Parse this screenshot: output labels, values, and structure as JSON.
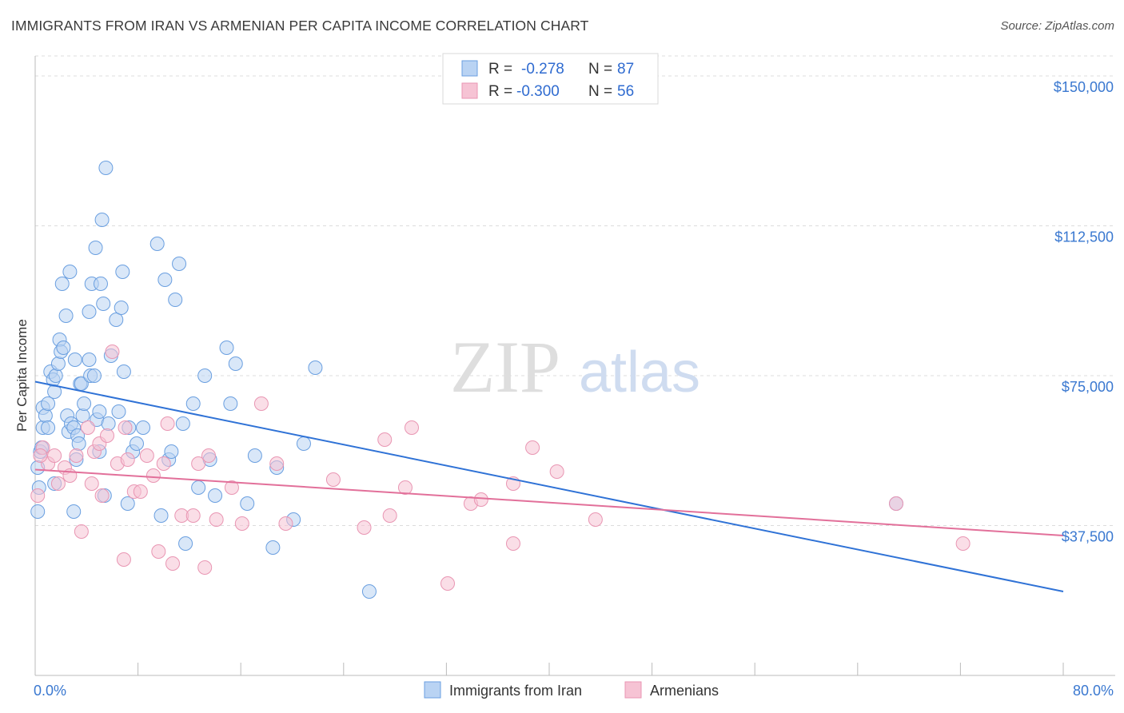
{
  "title": "IMMIGRANTS FROM IRAN VS ARMENIAN PER CAPITA INCOME CORRELATION CHART",
  "source": "Source: ZipAtlas.com",
  "watermark": {
    "zip": "ZIP",
    "atlas": "atlas"
  },
  "chart_data": {
    "type": "scatter",
    "ylabel": "Per Capita Income",
    "xlim": [
      0,
      80
    ],
    "ylim": [
      0,
      155000
    ],
    "x_tick_labels": [
      "0.0%",
      "80.0%"
    ],
    "y_ticks": [
      37500,
      75000,
      112500,
      150000
    ],
    "y_tick_labels": [
      "$37,500",
      "$75,000",
      "$112,500",
      "$150,000"
    ],
    "grid": true,
    "legend_position": "top-center",
    "stats": [
      {
        "r_label": "R =",
        "r_value": "-0.278",
        "n_label": "N =",
        "n_value": "87"
      },
      {
        "r_label": "R =",
        "r_value": "-0.300",
        "n_label": "N =",
        "n_value": "56"
      }
    ],
    "series": [
      {
        "name": "Immigrants from Iran",
        "color": "#6a9fe0",
        "fill": "#b9d3f3",
        "trend_color": "#2f72d6",
        "trend": {
          "x0": 0,
          "y0": 73500,
          "x1": 80,
          "y1": 21000
        },
        "points": [
          [
            0.2,
            41000
          ],
          [
            0.2,
            52000
          ],
          [
            0.4,
            56000
          ],
          [
            0.6,
            62000
          ],
          [
            0.6,
            67000
          ],
          [
            0.8,
            65000
          ],
          [
            1.0,
            68000
          ],
          [
            1.0,
            62000
          ],
          [
            1.2,
            76000
          ],
          [
            1.4,
            74000
          ],
          [
            1.5,
            71000
          ],
          [
            1.5,
            48000
          ],
          [
            1.6,
            75000
          ],
          [
            1.8,
            78000
          ],
          [
            1.9,
            84000
          ],
          [
            2.0,
            81000
          ],
          [
            2.1,
            98000
          ],
          [
            2.2,
            82000
          ],
          [
            2.4,
            90000
          ],
          [
            2.5,
            65000
          ],
          [
            2.6,
            61000
          ],
          [
            2.7,
            101000
          ],
          [
            2.8,
            63000
          ],
          [
            3.0,
            62000
          ],
          [
            3.0,
            41000
          ],
          [
            3.1,
            79000
          ],
          [
            3.2,
            54000
          ],
          [
            3.3,
            60000
          ],
          [
            3.4,
            58000
          ],
          [
            3.5,
            73000
          ],
          [
            3.6,
            73000
          ],
          [
            3.7,
            65000
          ],
          [
            3.8,
            68000
          ],
          [
            4.2,
            91000
          ],
          [
            4.2,
            79000
          ],
          [
            4.3,
            75000
          ],
          [
            4.4,
            98000
          ],
          [
            4.6,
            75000
          ],
          [
            4.7,
            107000
          ],
          [
            4.8,
            64000
          ],
          [
            5.0,
            66000
          ],
          [
            5.0,
            56000
          ],
          [
            5.1,
            98000
          ],
          [
            5.2,
            114000
          ],
          [
            5.3,
            93000
          ],
          [
            5.4,
            45000
          ],
          [
            5.5,
            127000
          ],
          [
            5.7,
            63000
          ],
          [
            5.9,
            80000
          ],
          [
            6.3,
            89000
          ],
          [
            6.5,
            66000
          ],
          [
            6.7,
            92000
          ],
          [
            6.8,
            101000
          ],
          [
            6.9,
            76000
          ],
          [
            7.2,
            43000
          ],
          [
            7.3,
            62000
          ],
          [
            7.6,
            56000
          ],
          [
            7.9,
            58000
          ],
          [
            8.4,
            62000
          ],
          [
            9.5,
            108000
          ],
          [
            9.8,
            40000
          ],
          [
            10.1,
            99000
          ],
          [
            10.4,
            54000
          ],
          [
            10.6,
            56000
          ],
          [
            10.9,
            94000
          ],
          [
            11.2,
            103000
          ],
          [
            11.5,
            63000
          ],
          [
            11.7,
            33000
          ],
          [
            12.3,
            68000
          ],
          [
            12.7,
            47000
          ],
          [
            13.2,
            75000
          ],
          [
            13.6,
            54000
          ],
          [
            14.0,
            45000
          ],
          [
            14.9,
            82000
          ],
          [
            15.2,
            68000
          ],
          [
            15.6,
            78000
          ],
          [
            16.5,
            43000
          ],
          [
            17.1,
            55000
          ],
          [
            18.5,
            32000
          ],
          [
            18.8,
            52000
          ],
          [
            20.1,
            39000
          ],
          [
            20.9,
            58000
          ],
          [
            21.8,
            77000
          ],
          [
            26.0,
            21000
          ],
          [
            67.0,
            43000
          ],
          [
            0.3,
            47000
          ],
          [
            0.5,
            57000
          ]
        ]
      },
      {
        "name": "Armenians",
        "color": "#e996b3",
        "fill": "#f6c3d4",
        "trend_color": "#e2709a",
        "trend": {
          "x0": 0,
          "y0": 51500,
          "x1": 80,
          "y1": 35000
        },
        "points": [
          [
            0.2,
            45000
          ],
          [
            0.6,
            57000
          ],
          [
            1.0,
            53000
          ],
          [
            1.5,
            55000
          ],
          [
            1.8,
            48000
          ],
          [
            2.3,
            52000
          ],
          [
            2.7,
            50000
          ],
          [
            3.2,
            55000
          ],
          [
            3.6,
            36000
          ],
          [
            4.1,
            62000
          ],
          [
            4.4,
            48000
          ],
          [
            4.6,
            56000
          ],
          [
            5.0,
            58000
          ],
          [
            5.2,
            45000
          ],
          [
            5.6,
            60000
          ],
          [
            6.0,
            81000
          ],
          [
            6.4,
            53000
          ],
          [
            6.9,
            29000
          ],
          [
            7.0,
            62000
          ],
          [
            7.2,
            54000
          ],
          [
            7.7,
            46000
          ],
          [
            8.2,
            46000
          ],
          [
            8.7,
            55000
          ],
          [
            9.2,
            50000
          ],
          [
            9.6,
            31000
          ],
          [
            10.0,
            53000
          ],
          [
            10.3,
            63000
          ],
          [
            10.7,
            28000
          ],
          [
            11.4,
            40000
          ],
          [
            12.3,
            40000
          ],
          [
            12.7,
            53000
          ],
          [
            13.2,
            27000
          ],
          [
            13.5,
            55000
          ],
          [
            14.1,
            39000
          ],
          [
            15.3,
            47000
          ],
          [
            16.1,
            38000
          ],
          [
            17.6,
            68000
          ],
          [
            18.8,
            53000
          ],
          [
            19.5,
            38000
          ],
          [
            23.2,
            49000
          ],
          [
            25.6,
            37000
          ],
          [
            27.2,
            59000
          ],
          [
            27.6,
            40000
          ],
          [
            28.8,
            47000
          ],
          [
            29.3,
            62000
          ],
          [
            32.1,
            23000
          ],
          [
            33.9,
            43000
          ],
          [
            34.7,
            44000
          ],
          [
            37.2,
            33000
          ],
          [
            37.2,
            48000
          ],
          [
            38.7,
            57000
          ],
          [
            40.6,
            51000
          ],
          [
            43.6,
            39000
          ],
          [
            67.0,
            43000
          ],
          [
            72.2,
            33000
          ],
          [
            0.4,
            55000
          ]
        ]
      }
    ]
  }
}
